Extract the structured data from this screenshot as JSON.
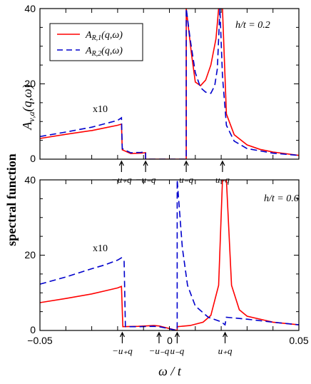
{
  "chart_data": [
    {
      "type": "line",
      "panel": "top",
      "param_label": "h/t = 0.2",
      "xlim": [
        -0.05,
        0.05
      ],
      "ylim": [
        0,
        40
      ],
      "yticks": [
        0,
        20,
        40
      ],
      "scale_annotation": "x10",
      "series": [
        {
          "name": "A_R,1(q,ω)",
          "color": "#ff0000",
          "style": "solid",
          "points": [
            [
              -0.05,
              5.5
            ],
            [
              -0.04,
              6.6
            ],
            [
              -0.03,
              7.6
            ],
            [
              -0.025,
              8.3
            ],
            [
              -0.02,
              9.0
            ],
            [
              -0.0185,
              9.3
            ],
            [
              -0.0182,
              2.5
            ],
            [
              -0.015,
              1.5
            ],
            [
              -0.011,
              1.6
            ],
            [
              -0.0092,
              1.7
            ],
            [
              -0.0092,
              0
            ],
            [
              0.0065,
              0
            ],
            [
              0.0065,
              40
            ],
            [
              0.0085,
              28
            ],
            [
              0.01,
              20.5
            ],
            [
              0.012,
              19.5
            ],
            [
              0.014,
              21
            ],
            [
              0.016,
              25
            ],
            [
              0.018,
              32
            ],
            [
              0.019,
              40
            ],
            [
              0.0205,
              40
            ],
            [
              0.022,
              12
            ],
            [
              0.025,
              6.5
            ],
            [
              0.03,
              3.8
            ],
            [
              0.035,
              2.6
            ],
            [
              0.04,
              1.9
            ],
            [
              0.05,
              1.0
            ]
          ]
        },
        {
          "name": "A_R,2(q,ω)",
          "color": "#0000cc",
          "style": "dashed",
          "points": [
            [
              -0.05,
              6.0
            ],
            [
              -0.04,
              7.2
            ],
            [
              -0.03,
              8.5
            ],
            [
              -0.025,
              9.4
            ],
            [
              -0.02,
              10.3
            ],
            [
              -0.0185,
              11.0
            ],
            [
              -0.0182,
              2.8
            ],
            [
              -0.015,
              1.7
            ],
            [
              -0.011,
              1.8
            ],
            [
              -0.0092,
              1.9
            ],
            [
              -0.0092,
              0
            ],
            [
              0.0065,
              0
            ],
            [
              0.0065,
              40
            ],
            [
              0.008,
              32
            ],
            [
              0.01,
              23
            ],
            [
              0.012,
              19
            ],
            [
              0.014,
              17.8
            ],
            [
              0.016,
              17.5
            ],
            [
              0.0175,
              19.5
            ],
            [
              0.0185,
              24
            ],
            [
              0.0195,
              40
            ],
            [
              0.0205,
              22
            ],
            [
              0.022,
              9
            ],
            [
              0.025,
              4.8
            ],
            [
              0.03,
              2.8
            ],
            [
              0.04,
              1.6
            ],
            [
              0.05,
              1.0
            ]
          ]
        }
      ],
      "markers": [
        {
          "label": "−u+q",
          "x": -0.0185
        },
        {
          "label": "−u−q",
          "x": -0.0092
        },
        {
          "label": "u−q",
          "x": 0.0065
        },
        {
          "label": "u+q",
          "x": 0.0205
        }
      ]
    },
    {
      "type": "line",
      "panel": "bottom",
      "param_label": "h/t = 0.6",
      "xlim": [
        -0.05,
        0.05
      ],
      "ylim": [
        0,
        40
      ],
      "yticks": [
        0,
        20,
        40
      ],
      "xticks": [
        -0.05,
        0,
        0.05
      ],
      "xlabel": "ω / t",
      "scale_annotation": "x10",
      "series": [
        {
          "name": "A_R,1(q,ω)",
          "color": "#ff0000",
          "style": "solid",
          "points": [
            [
              -0.05,
              7.4
            ],
            [
              -0.04,
              8.5
            ],
            [
              -0.03,
              9.7
            ],
            [
              -0.025,
              10.5
            ],
            [
              -0.02,
              11.3
            ],
            [
              -0.0185,
              11.7
            ],
            [
              -0.018,
              1.0
            ],
            [
              -0.012,
              1.1
            ],
            [
              -0.006,
              1.3
            ],
            [
              -0.004,
              1.2
            ],
            [
              0.003,
              0
            ],
            [
              0.003,
              1.0
            ],
            [
              0.008,
              1.3
            ],
            [
              0.013,
              2.2
            ],
            [
              0.016,
              4
            ],
            [
              0.019,
              12
            ],
            [
              0.0205,
              40
            ],
            [
              0.022,
              40
            ],
            [
              0.024,
              12
            ],
            [
              0.027,
              5.5
            ],
            [
              0.03,
              3.8
            ],
            [
              0.04,
              2.2
            ],
            [
              0.05,
              1.5
            ]
          ]
        },
        {
          "name": "A_R,2(q,ω)",
          "color": "#0000cc",
          "style": "dashed",
          "points": [
            [
              -0.05,
              12.3
            ],
            [
              -0.04,
              14.2
            ],
            [
              -0.03,
              16.4
            ],
            [
              -0.025,
              17.4
            ],
            [
              -0.02,
              18.7
            ],
            [
              -0.0185,
              19.3
            ],
            [
              -0.0175,
              18.5
            ],
            [
              -0.017,
              1.0
            ],
            [
              -0.012,
              1.0
            ],
            [
              -0.006,
              1.1
            ],
            [
              -0.004,
              1.0
            ],
            [
              0.003,
              0
            ],
            [
              0.003,
              40
            ],
            [
              0.005,
              22
            ],
            [
              0.007,
              12
            ],
            [
              0.01,
              6.5
            ],
            [
              0.015,
              3.5
            ],
            [
              0.02,
              2.3
            ],
            [
              0.0215,
              1.5
            ],
            [
              0.022,
              3.5
            ],
            [
              0.03,
              3.0
            ],
            [
              0.04,
              2.2
            ],
            [
              0.05,
              1.5
            ]
          ]
        }
      ],
      "markers": [
        {
          "label": "−u+q",
          "x": -0.0182
        },
        {
          "label": "−u−q",
          "x": -0.004
        },
        {
          "label": "u−q",
          "x": 0.003
        },
        {
          "label": "u+q",
          "x": 0.0215
        }
      ]
    }
  ],
  "legend": {
    "items": [
      "A_R,1(q,ω)",
      "A_R,2(q,ω)"
    ],
    "placement": "top-left"
  },
  "shared_ylabel": "spectral function",
  "top_ylabel": "A_ν,a(q,ω)",
  "tick_text": {
    "minus005": "−0.05",
    "zero": "0",
    "plus005": "0.05",
    "y0": "0",
    "y20": "20",
    "y40": "40"
  },
  "marker_text": {
    "mu_plus": "−u₊q",
    "mu_minus": "−u₋q",
    "u_minus": "u₋q",
    "u_plus": "u₊q"
  },
  "param_text": {
    "top": "h/t = 0.2",
    "bottom": "h/t = 0.6"
  },
  "xlabel_text": "ω / t",
  "scale_text": "x10"
}
